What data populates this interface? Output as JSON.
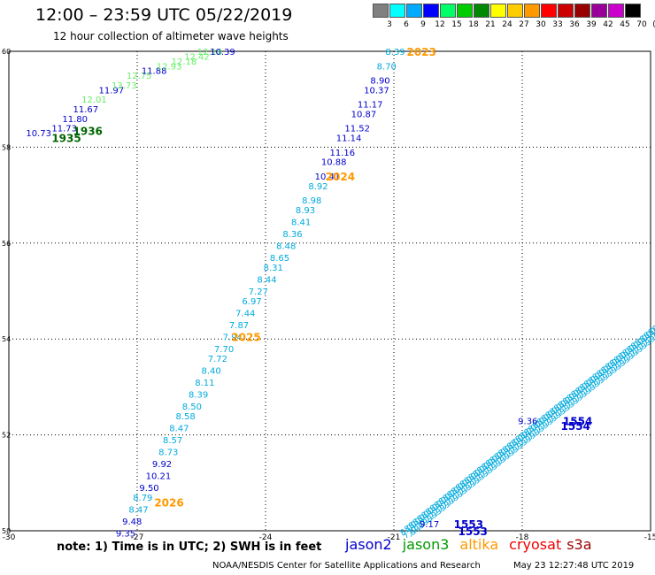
{
  "title": "12:00 – 23:59 UTC 05/22/2019",
  "subtitle": "12 hour collection of altimeter wave heights",
  "colorscale": {
    "labels": [
      "3",
      "6",
      "9",
      "12",
      "15",
      "18",
      "21",
      "24",
      "27",
      "30",
      "33",
      "36",
      "39",
      "42",
      "45",
      "70",
      "(ft)"
    ],
    "colors": [
      "#808080",
      "#00ffff",
      "#00aaff",
      "#0000ff",
      "#00ff66",
      "#00cc00",
      "#008800",
      "#ffff00",
      "#ffcc00",
      "#ff9900",
      "#ff0000",
      "#cc0000",
      "#990000",
      "#990099",
      "#cc00cc",
      "#000000"
    ]
  },
  "axes": {
    "lon_ticks": [
      "-30",
      "-27",
      "-24",
      "-21",
      "-18",
      "-15"
    ],
    "lat_ticks": [
      "60",
      "58",
      "56",
      "54",
      "52",
      "50"
    ],
    "lon_range": [
      -30,
      -15
    ],
    "lat_range": [
      50,
      60
    ]
  },
  "tracks": [
    {
      "satellite": "jason3",
      "points": [
        {
          "lon": -29.6,
          "lat": 58.3,
          "val": "10.73",
          "color": "#0000cc"
        },
        {
          "lon": -29.0,
          "lat": 58.4,
          "val": "11.73",
          "color": "#0000cc"
        },
        {
          "lon": -28.75,
          "lat": 58.6,
          "val": "11.80",
          "color": "#0000cc"
        },
        {
          "lon": -28.5,
          "lat": 58.8,
          "val": "11.67",
          "color": "#0000cc"
        },
        {
          "lon": -28.3,
          "lat": 59.0,
          "val": "12.01",
          "color": "#66ee66"
        },
        {
          "lon": -27.9,
          "lat": 59.2,
          "val": "11.97",
          "color": "#0000cc"
        },
        {
          "lon": -27.6,
          "lat": 59.3,
          "val": "13.73",
          "color": "#66ee66"
        },
        {
          "lon": -27.25,
          "lat": 59.5,
          "val": "12.75",
          "color": "#66ee66"
        },
        {
          "lon": -26.9,
          "lat": 59.6,
          "val": "11.88",
          "color": "#0000cc"
        },
        {
          "lon": -26.55,
          "lat": 59.7,
          "val": "12.93",
          "color": "#66ee66"
        },
        {
          "lon": -26.2,
          "lat": 59.8,
          "val": "12.18",
          "color": "#66ee66"
        },
        {
          "lon": -25.9,
          "lat": 59.9,
          "val": "12.42",
          "color": "#66ee66"
        },
        {
          "lon": -25.6,
          "lat": 60.0,
          "val": "12.16",
          "color": "#66ee66"
        },
        {
          "lon": -25.3,
          "lat": 60.0,
          "val": "10.39",
          "color": "#0000cc"
        }
      ],
      "labels": [
        {
          "lon": -29.0,
          "lat": 58.2,
          "text": "1935",
          "color": "#006600"
        },
        {
          "lon": -28.5,
          "lat": 58.35,
          "text": "1936",
          "color": "#006600"
        }
      ]
    },
    {
      "satellite": "altika",
      "points": [
        {
          "lon": -21.2,
          "lat": 60.0,
          "val": "8.39",
          "color": "#00aadd"
        },
        {
          "lon": -21.4,
          "lat": 59.7,
          "val": "8.70",
          "color": "#00aadd"
        },
        {
          "lon": -21.55,
          "lat": 59.4,
          "val": "8.90",
          "color": "#0000cc"
        },
        {
          "lon": -21.7,
          "lat": 59.2,
          "val": "10.37",
          "color": "#0000cc"
        },
        {
          "lon": -21.85,
          "lat": 58.9,
          "val": "11.17",
          "color": "#0000cc"
        },
        {
          "lon": -22.0,
          "lat": 58.7,
          "val": "10.87",
          "color": "#0000cc"
        },
        {
          "lon": -22.15,
          "lat": 58.4,
          "val": "11.52",
          "color": "#0000cc"
        },
        {
          "lon": -22.35,
          "lat": 58.2,
          "val": "11.14",
          "color": "#0000cc"
        },
        {
          "lon": -22.5,
          "lat": 57.9,
          "val": "11.16",
          "color": "#0000cc"
        },
        {
          "lon": -22.7,
          "lat": 57.7,
          "val": "10.88",
          "color": "#0000cc"
        },
        {
          "lon": -22.85,
          "lat": 57.4,
          "val": "10.41",
          "color": "#0000cc"
        },
        {
          "lon": -23.0,
          "lat": 57.2,
          "val": "8.92",
          "color": "#00aadd"
        },
        {
          "lon": -23.15,
          "lat": 56.9,
          "val": "8.98",
          "color": "#00aadd"
        },
        {
          "lon": -23.3,
          "lat": 56.7,
          "val": "8.93",
          "color": "#00aadd"
        },
        {
          "lon": -23.4,
          "lat": 56.45,
          "val": "8.41",
          "color": "#00aadd"
        },
        {
          "lon": -23.6,
          "lat": 56.2,
          "val": "8.36",
          "color": "#00aadd"
        },
        {
          "lon": -23.75,
          "lat": 55.95,
          "val": "8.48",
          "color": "#00aadd"
        },
        {
          "lon": -23.9,
          "lat": 55.7,
          "val": "8.65",
          "color": "#00aadd"
        },
        {
          "lon": -24.05,
          "lat": 55.5,
          "val": "8.31",
          "color": "#00aadd"
        },
        {
          "lon": -24.2,
          "lat": 55.25,
          "val": "8.44",
          "color": "#00aadd"
        },
        {
          "lon": -24.4,
          "lat": 55.0,
          "val": "7.27",
          "color": "#00aadd"
        },
        {
          "lon": -24.55,
          "lat": 54.8,
          "val": "6.97",
          "color": "#00aadd"
        },
        {
          "lon": -24.7,
          "lat": 54.55,
          "val": "7.44",
          "color": "#00aadd"
        },
        {
          "lon": -24.85,
          "lat": 54.3,
          "val": "7.87",
          "color": "#00aadd"
        },
        {
          "lon": -25.0,
          "lat": 54.05,
          "val": "7.94",
          "color": "#00aadd"
        },
        {
          "lon": -25.2,
          "lat": 53.8,
          "val": "7.70",
          "color": "#00aadd"
        },
        {
          "lon": -25.35,
          "lat": 53.6,
          "val": "7.72",
          "color": "#00aadd"
        },
        {
          "lon": -25.5,
          "lat": 53.35,
          "val": "8.40",
          "color": "#00aadd"
        },
        {
          "lon": -25.65,
          "lat": 53.1,
          "val": "8.11",
          "color": "#00aadd"
        },
        {
          "lon": -25.8,
          "lat": 52.85,
          "val": "8.39",
          "color": "#00aadd"
        },
        {
          "lon": -25.95,
          "lat": 52.6,
          "val": "8.50",
          "color": "#00aadd"
        },
        {
          "lon": -26.1,
          "lat": 52.4,
          "val": "8.58",
          "color": "#00aadd"
        },
        {
          "lon": -26.25,
          "lat": 52.15,
          "val": "8.47",
          "color": "#00aadd"
        },
        {
          "lon": -26.4,
          "lat": 51.9,
          "val": "8.57",
          "color": "#00aadd"
        },
        {
          "lon": -26.5,
          "lat": 51.65,
          "val": "8.73",
          "color": "#00aadd"
        },
        {
          "lon": -26.65,
          "lat": 51.4,
          "val": "9.92",
          "color": "#0000cc"
        },
        {
          "lon": -26.8,
          "lat": 51.15,
          "val": "10.21",
          "color": "#0000cc"
        },
        {
          "lon": -26.95,
          "lat": 50.9,
          "val": "9.50",
          "color": "#0000cc"
        },
        {
          "lon": -27.1,
          "lat": 50.7,
          "val": "8.79",
          "color": "#00aadd"
        },
        {
          "lon": -27.2,
          "lat": 50.45,
          "val": "8.47",
          "color": "#00aadd"
        },
        {
          "lon": -27.35,
          "lat": 50.2,
          "val": "9.48",
          "color": "#0000cc"
        },
        {
          "lon": -27.5,
          "lat": 49.95,
          "val": "9.35",
          "color": "#0000cc"
        }
      ],
      "labels": [
        {
          "lon": -20.7,
          "lat": 60.0,
          "text": "2023",
          "color": "#ff9900"
        },
        {
          "lon": -22.6,
          "lat": 57.4,
          "text": "2024",
          "color": "#ff9900"
        },
        {
          "lon": -24.8,
          "lat": 54.05,
          "text": "2025",
          "color": "#ff9900"
        },
        {
          "lon": -26.6,
          "lat": 50.6,
          "text": "2026",
          "color": "#ff9900"
        }
      ]
    },
    {
      "satellite": "jason2",
      "points": [
        {
          "lon": -20.4,
          "lat": 50.15,
          "val": "9.17",
          "color": "#0000cc"
        },
        {
          "lon": -18.1,
          "lat": 52.3,
          "val": "9.36",
          "color": "#0000cc"
        }
      ],
      "labels": [
        {
          "lon": -19.5,
          "lat": 50.0,
          "text": "1553",
          "color": "#0000cc"
        },
        {
          "lon": -19.6,
          "lat": 50.15,
          "text": "1553",
          "color": "#0000cc"
        },
        {
          "lon": -17.05,
          "lat": 52.3,
          "text": "1554",
          "color": "#0000cc"
        },
        {
          "lon": -17.1,
          "lat": 52.2,
          "text": "1554",
          "color": "#0000cc"
        }
      ]
    }
  ],
  "dense_track": {
    "start": {
      "lon": -20.8,
      "lat": 49.95
    },
    "end": {
      "lon": -14.9,
      "lat": 54.2
    },
    "color": "#00aadd"
  },
  "note": "note: 1) Time is in UTC; 2) SWH is in feet",
  "satellites": [
    {
      "name": "jason2",
      "color": "#0000cc"
    },
    {
      "name": "jason3",
      "color": "#009900"
    },
    {
      "name": "altika",
      "color": "#ff9900"
    },
    {
      "name": "cryosat",
      "color": "#ee0000"
    },
    {
      "name": "s3a",
      "color": "#990000"
    }
  ],
  "credit": "NOAA/NESDIS Center for Satellite Applications and Research",
  "timestamp": "May 23 12:27:48 UTC 2019"
}
